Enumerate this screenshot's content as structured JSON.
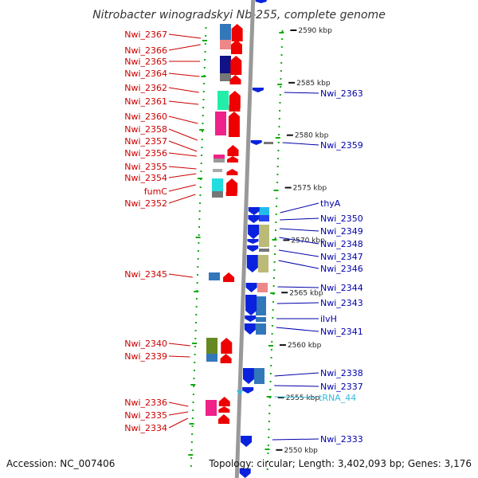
{
  "title": "Nitrobacter winogradskyi Nb-255, complete genome",
  "footer": {
    "accession": "Accession: NC_007406",
    "summary": "Topology: circular; Length: 3,402,093 bp; Genes: 3,176"
  },
  "colors": {
    "forward_gene": "#ee0000",
    "reverse_gene": "#0a22dd",
    "forward_label": "#cc0000",
    "reverse_label": "#0000aa",
    "rna_label": "#33bbdd",
    "backbone": "#999999",
    "gc_dots": "#11aa11"
  },
  "ticks": [
    {
      "label": "2590 kbp",
      "pos_kbp": 2590
    },
    {
      "label": "2585 kbp",
      "pos_kbp": 2585
    },
    {
      "label": "2580 kbp",
      "pos_kbp": 2580
    },
    {
      "label": "2575 kbp",
      "pos_kbp": 2575
    },
    {
      "label": "2570 kbp",
      "pos_kbp": 2570
    },
    {
      "label": "2565 kbp",
      "pos_kbp": 2565
    },
    {
      "label": "2560 kbp",
      "pos_kbp": 2560
    },
    {
      "label": "2555 kbp",
      "pos_kbp": 2555
    },
    {
      "label": "2550 kbp",
      "pos_kbp": 2550
    }
  ],
  "forward_labels": [
    "Nwi_2367",
    "Nwi_2366",
    "Nwi_2365",
    "Nwi_2364",
    "Nwi_2362",
    "Nwi_2361",
    "Nwi_2360",
    "Nwi_2358",
    "Nwi_2357",
    "Nwi_2356",
    "Nwi_2355",
    "Nwi_2354",
    "fumC",
    "Nwi_2352",
    "Nwi_2345",
    "Nwi_2340",
    "Nwi_2339",
    "Nwi_2336",
    "Nwi_2335",
    "Nwi_2334"
  ],
  "reverse_labels": [
    "Nwi_2363",
    "Nwi_2359",
    "thyA",
    "Nwi_2350",
    "Nwi_2349",
    "Nwi_2348",
    "Nwi_2347",
    "Nwi_2346",
    "Nwi_2344",
    "Nwi_2343",
    "ilvH",
    "Nwi_2341",
    "Nwi_2338",
    "Nwi_2337",
    "Nwi_2333"
  ],
  "rna_labels": [
    "tRNA_44"
  ]
}
